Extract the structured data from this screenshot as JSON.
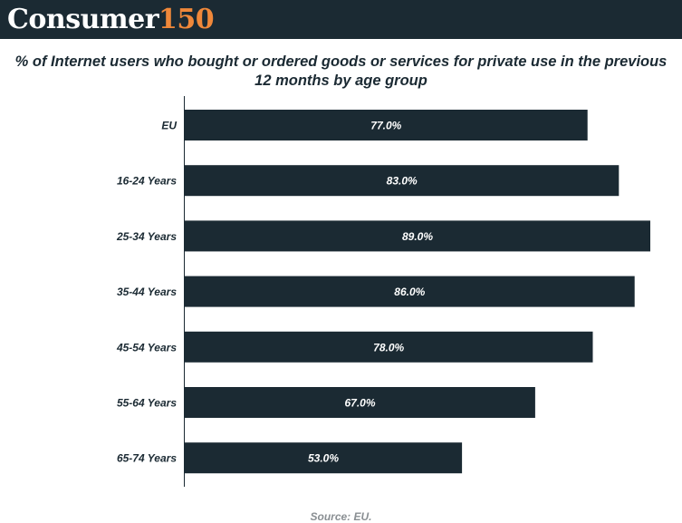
{
  "header": {
    "logo_word": "Consumer",
    "logo_number": "150"
  },
  "colors": {
    "header_bg": "#1b2a33",
    "logo_accent": "#f0883a",
    "bar": "#1b2a33",
    "bar_label": "#ffffff"
  },
  "chart_data": {
    "type": "bar",
    "orientation": "horizontal",
    "title_lines": [
      "% of Internet users who bought or ordered goods or services for private use in the previous",
      "12 months by age group"
    ],
    "categories": [
      "EU",
      "16-24 Years",
      "25-34 Years",
      "35-44 Years",
      "45-54 Years",
      "55-64 Years",
      "65-74 Years"
    ],
    "values": [
      77.0,
      83.0,
      89.0,
      86.0,
      78.0,
      67.0,
      53.0
    ],
    "value_labels": [
      "77.0%",
      "83.0%",
      "89.0%",
      "86.0%",
      "78.0%",
      "67.0%",
      "53.0%"
    ],
    "value_unit": "%",
    "xlim": [
      0,
      89
    ],
    "grid": false,
    "legend": "none"
  },
  "footer": {
    "source": "Source: EU."
  }
}
